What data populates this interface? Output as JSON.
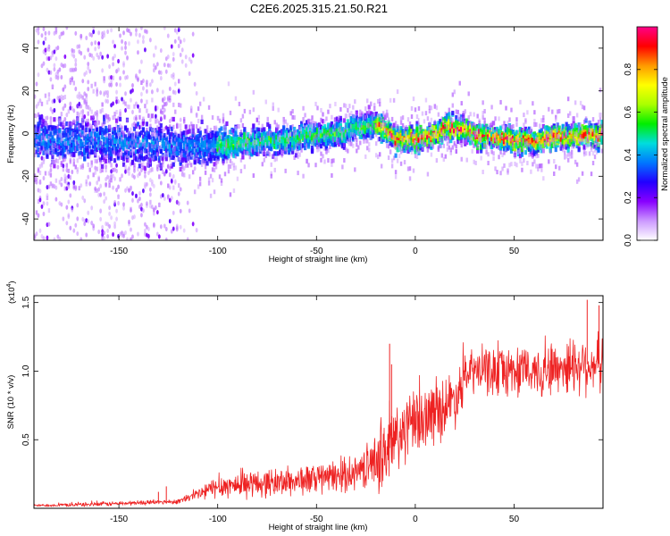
{
  "title": "C2E6.2025.315.21.50.R21",
  "chart_data": [
    {
      "type": "heatmap",
      "xlabel": "Height of straight line (km)",
      "ylabel": "Frequency (Hz)",
      "xlim": [
        -193,
        95
      ],
      "ylim": [
        -50,
        50
      ],
      "xticks": [
        -150,
        -100,
        -50,
        0,
        50
      ],
      "yticks": [
        -40,
        -20,
        0,
        20,
        40
      ],
      "xtick_labels": [
        "-150",
        "-100",
        "-50",
        "0",
        "50"
      ],
      "ytick_labels": [
        "-40",
        "-20",
        "0",
        "20",
        "40"
      ],
      "ridge": {
        "description_points_x": [
          -193,
          -150,
          -120,
          -100,
          -80,
          -50,
          -30,
          -20,
          -15,
          -10,
          -5,
          0,
          5,
          10,
          15,
          20,
          30,
          40,
          50,
          60,
          70,
          80,
          95
        ],
        "center_freq": [
          -3,
          -4,
          -6,
          -6,
          -4,
          -1,
          2,
          4,
          1,
          -3,
          -2,
          -2,
          -2,
          0,
          2,
          3,
          0,
          -2,
          -3,
          -3,
          -2,
          -1,
          0
        ]
      },
      "colorbar": {
        "label": "Normalized spectral amplitude",
        "range": [
          0.0,
          1.0
        ],
        "ticks": [
          0.0,
          0.2,
          0.4,
          0.6,
          0.8
        ],
        "tick_labels": [
          "0.0",
          "0.2",
          "0.4",
          "0.6",
          "0.8"
        ],
        "colormap": [
          "#ffffff",
          "#cc99ff",
          "#8800ff",
          "#2200ff",
          "#0077ff",
          "#00dddd",
          "#00ee00",
          "#aaff00",
          "#ffff00",
          "#ff9900",
          "#ff0000",
          "#ff0088"
        ]
      }
    },
    {
      "type": "line",
      "xlabel": "Height of straight line (km)",
      "ylabel": "SNR (10 * v/v)",
      "y_multiplier_label": "(x10",
      "y_multiplier_exp": "4",
      "y_multiplier_close": ")",
      "xlim": [
        -193,
        95
      ],
      "ylim": [
        0,
        1.55
      ],
      "xticks": [
        -150,
        -100,
        -50,
        0,
        50
      ],
      "yticks": [
        0.5,
        1.0,
        1.5
      ],
      "xtick_labels": [
        "-150",
        "-100",
        "-50",
        "0",
        "50"
      ],
      "ytick_labels": [
        "0.5",
        "1.0",
        "1.5"
      ],
      "color": "#ee2222",
      "envelope": {
        "x": [
          -193,
          -160,
          -120,
          -110,
          -100,
          -80,
          -60,
          -40,
          -30,
          -20,
          -15,
          -12,
          -5,
          0,
          10,
          20,
          25,
          30,
          40,
          50,
          60,
          70,
          80,
          95
        ],
        "base": [
          0.02,
          0.03,
          0.05,
          0.1,
          0.16,
          0.18,
          0.2,
          0.23,
          0.26,
          0.35,
          0.42,
          0.45,
          0.58,
          0.62,
          0.7,
          0.8,
          0.95,
          1.0,
          1.0,
          1.0,
          1.0,
          1.02,
          1.05,
          1.05
        ],
        "amp": [
          0.01,
          0.02,
          0.02,
          0.06,
          0.1,
          0.12,
          0.13,
          0.14,
          0.15,
          0.22,
          0.45,
          0.4,
          0.3,
          0.28,
          0.28,
          0.25,
          0.22,
          0.2,
          0.22,
          0.22,
          0.23,
          0.24,
          0.26,
          0.25
        ]
      },
      "spikes": [
        {
          "x": -126,
          "y": 0.16
        },
        {
          "x": -130,
          "y": 0.12
        },
        {
          "x": -13,
          "y": 1.2
        },
        {
          "x": -12,
          "y": 1.05
        },
        {
          "x": 87,
          "y": 1.52
        },
        {
          "x": 93,
          "y": 1.48
        }
      ]
    }
  ]
}
